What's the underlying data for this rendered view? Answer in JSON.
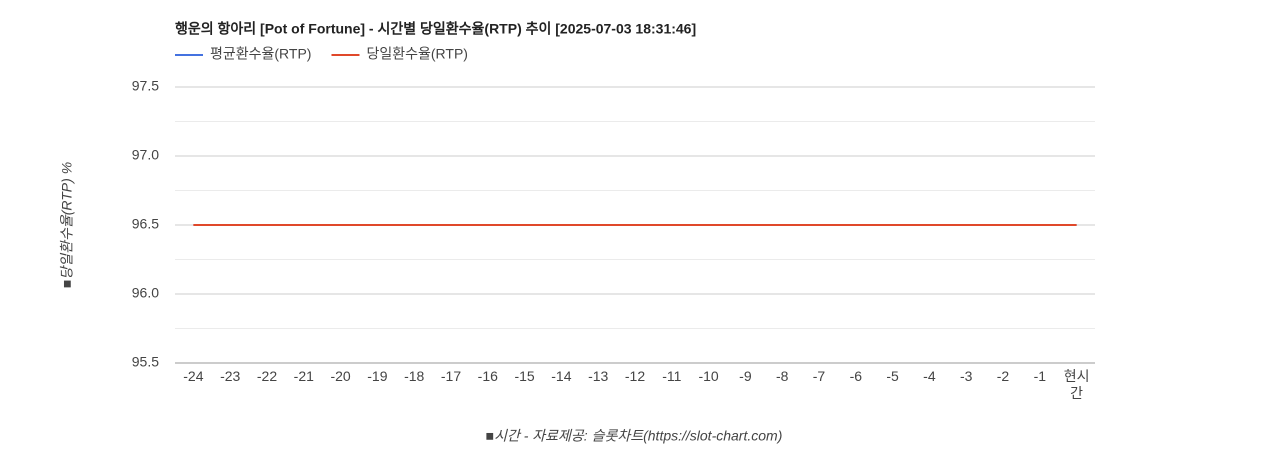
{
  "chart_data": {
    "type": "line",
    "title": "행운의 항아리 [Pot of Fortune] - 시간별 당일환수율(RTP) 추이 [2025-07-03 18:31:46]",
    "y_label": "■당일환수율(RTP) %",
    "x_label": "■시간 - 자료제공: 슬롯차트(https://slot-chart.com)",
    "categories": [
      "-24",
      "-23",
      "-22",
      "-21",
      "-20",
      "-19",
      "-18",
      "-17",
      "-16",
      "-15",
      "-14",
      "-13",
      "-12",
      "-11",
      "-10",
      "-9",
      "-8",
      "-7",
      "-6",
      "-5",
      "-4",
      "-3",
      "-2",
      "-1",
      "현시간"
    ],
    "series": [
      {
        "name": "평균환수율(RTP)",
        "color": "#4472e0",
        "values": [
          96.5,
          96.5,
          96.5,
          96.5,
          96.5,
          96.5,
          96.5,
          96.5,
          96.5,
          96.5,
          96.5,
          96.5,
          96.5,
          96.5,
          96.5,
          96.5,
          96.5,
          96.5,
          96.5,
          96.5,
          96.5,
          96.5,
          96.5,
          96.5,
          96.5
        ]
      },
      {
        "name": "당일환수율(RTP)",
        "color": "#e0482a",
        "values": [
          96.5,
          96.5,
          96.5,
          96.5,
          96.5,
          96.5,
          96.5,
          96.5,
          96.5,
          96.5,
          96.5,
          96.5,
          96.5,
          96.5,
          96.5,
          96.5,
          96.5,
          96.5,
          96.5,
          96.5,
          96.5,
          96.5,
          96.5,
          96.5,
          96.5
        ]
      }
    ],
    "ylim": [
      95.5,
      97.5
    ],
    "yticks": [
      95.5,
      {
        "value": 96,
        "label": "96.0"
      },
      96.5,
      {
        "value": 97,
        "label": "97.0"
      },
      97.5
    ],
    "minor_yticks": [
      95.75,
      96.25,
      96.75,
      97.25
    ],
    "grid": true,
    "legend": "top-left"
  }
}
